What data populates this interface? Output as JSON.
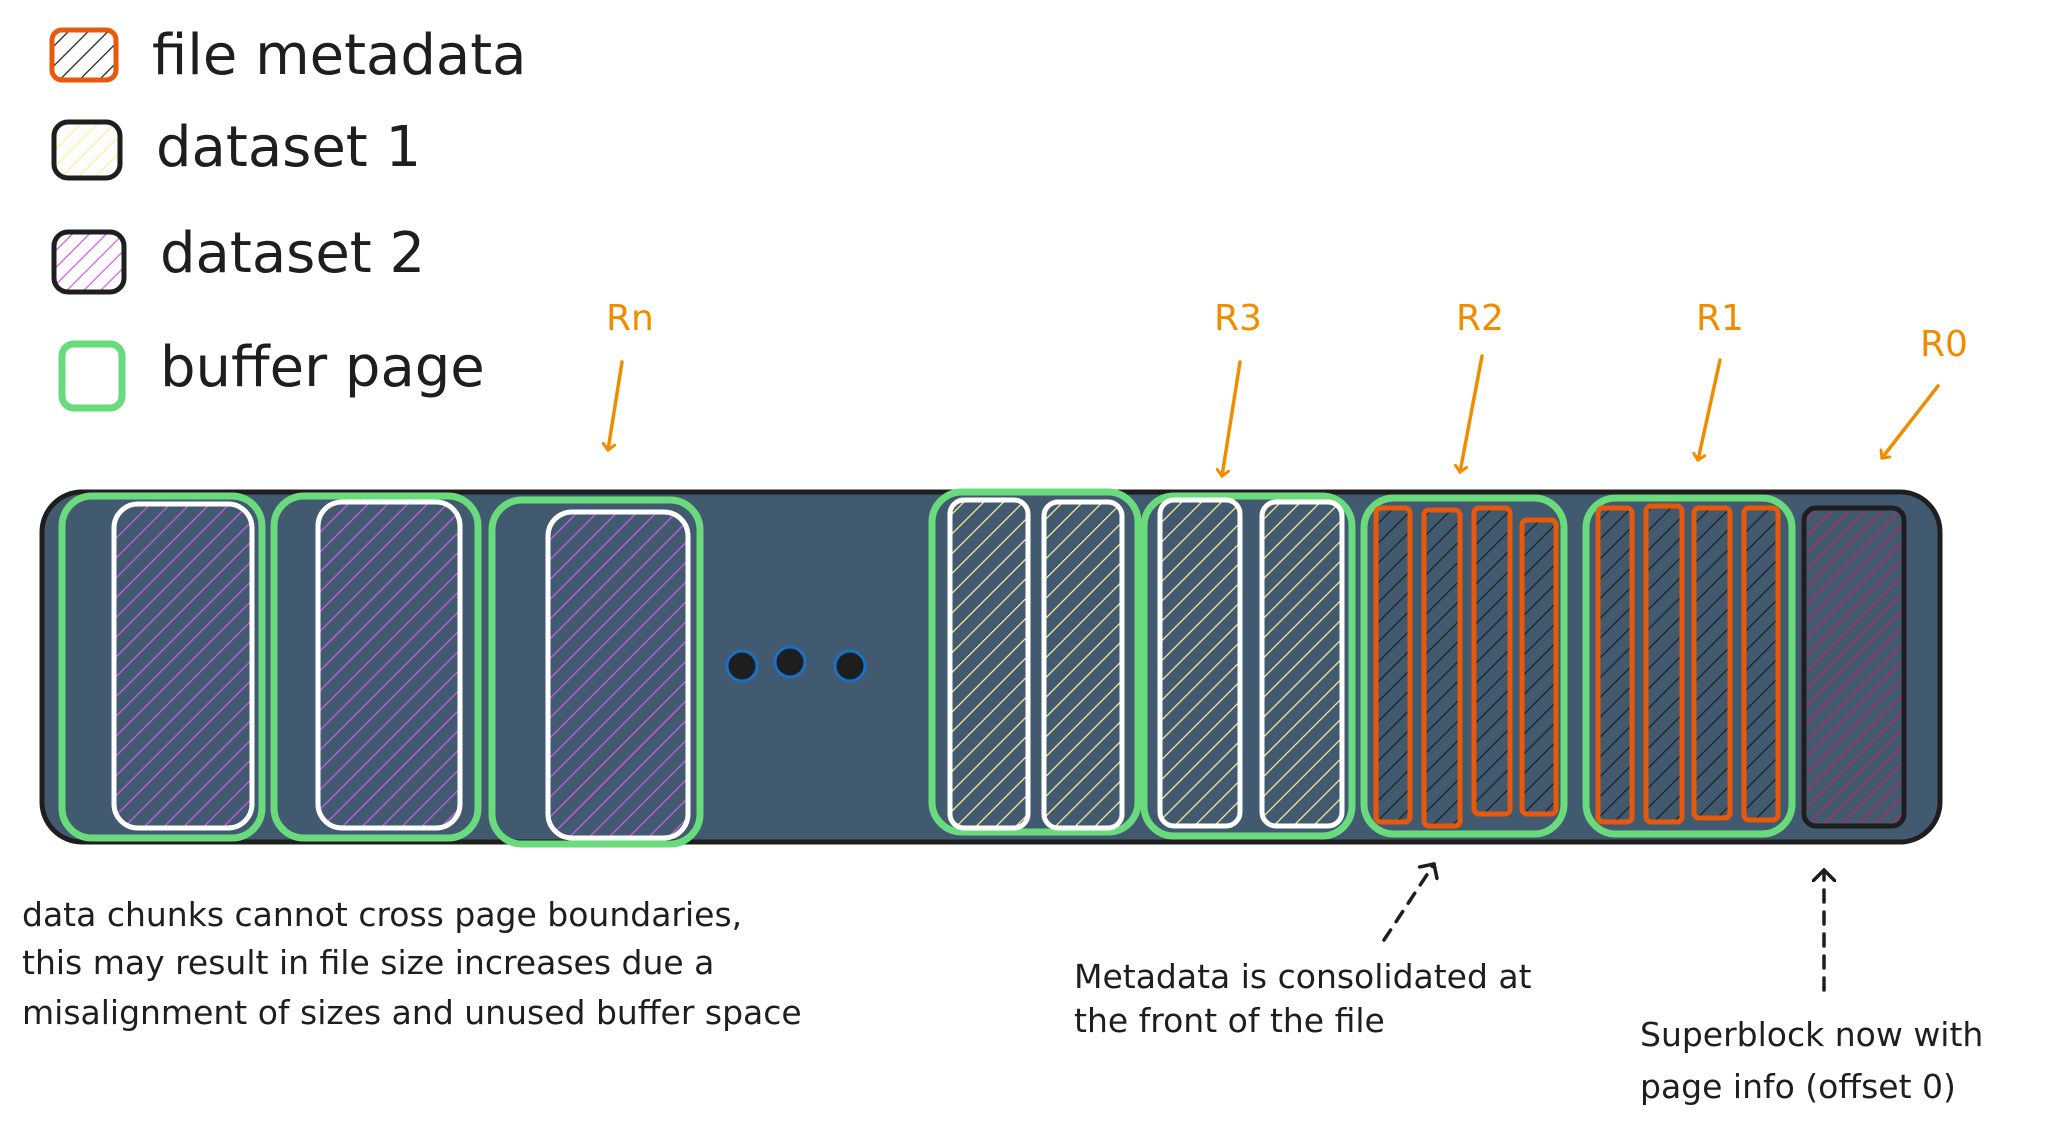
{
  "legend": {
    "file_metadata": "file metadata",
    "dataset1": "dataset 1",
    "dataset2": "dataset 2",
    "buffer_page": "buffer page"
  },
  "regions": {
    "rn": "Rn",
    "r3": "R3",
    "r2": "R2",
    "r1": "R1",
    "r0": "R0"
  },
  "notes": {
    "chunks_line1": "data chunks cannot cross page boundaries,",
    "chunks_line2": "this may result in file size increases due a",
    "chunks_line3": "misalignment of sizes and unused buffer space",
    "metadata_line1": "Metadata is consolidated at",
    "metadata_line2": "the front of the file",
    "superblock_line1": "Superblock now with",
    "superblock_line2": "page info (offset 0)"
  },
  "colors": {
    "file_bar": "#425a70",
    "buffer_page": "#69db7c",
    "file_metadata": "#e8590c",
    "dataset1": "#ffec99",
    "dataset2": "#cc5de8",
    "superblock": "#c2255c",
    "region_label": "#f08c00",
    "ellipsis_dot": "#1971c2",
    "ink": "#1e1e1e"
  }
}
